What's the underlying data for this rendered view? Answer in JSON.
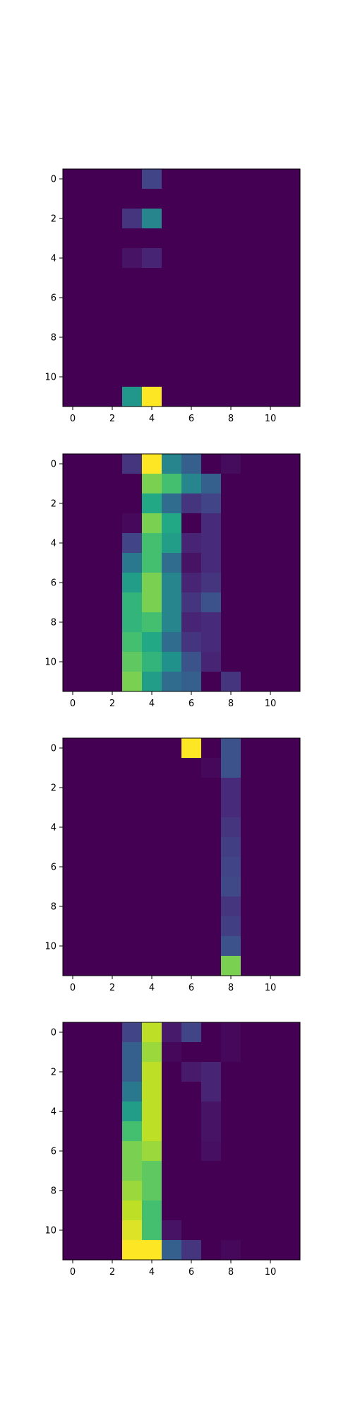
{
  "colormap": "viridis",
  "chart_data": [
    {
      "type": "heatmap",
      "x_ticks": [
        0,
        2,
        4,
        6,
        8,
        10
      ],
      "y_ticks": [
        0,
        2,
        4,
        6,
        8,
        10
      ],
      "xlim": [
        -0.5,
        11.5
      ],
      "ylim": [
        11.5,
        -0.5
      ],
      "vmin": 0,
      "vmax": 1,
      "values": [
        [
          0,
          0,
          0,
          0,
          0.2,
          0,
          0,
          0,
          0,
          0,
          0,
          0
        ],
        [
          0,
          0,
          0,
          0,
          0,
          0,
          0,
          0,
          0,
          0,
          0,
          0
        ],
        [
          0,
          0,
          0,
          0.15,
          0.45,
          0,
          0,
          0,
          0,
          0,
          0,
          0
        ],
        [
          0,
          0,
          0,
          0,
          0,
          0,
          0,
          0,
          0,
          0,
          0,
          0
        ],
        [
          0,
          0,
          0,
          0.05,
          0.1,
          0,
          0,
          0,
          0,
          0,
          0,
          0
        ],
        [
          0,
          0,
          0,
          0,
          0,
          0,
          0,
          0,
          0,
          0,
          0,
          0
        ],
        [
          0,
          0,
          0,
          0,
          0,
          0,
          0,
          0,
          0,
          0,
          0,
          0
        ],
        [
          0,
          0,
          0,
          0,
          0,
          0,
          0,
          0,
          0,
          0,
          0,
          0
        ],
        [
          0,
          0,
          0,
          0,
          0,
          0,
          0,
          0,
          0,
          0,
          0,
          0
        ],
        [
          0,
          0,
          0,
          0,
          0,
          0,
          0,
          0,
          0,
          0,
          0,
          0
        ],
        [
          0,
          0,
          0,
          0,
          0,
          0,
          0,
          0,
          0,
          0,
          0,
          0
        ],
        [
          0,
          0,
          0,
          0.52,
          1.0,
          0,
          0,
          0,
          0,
          0,
          0,
          0
        ]
      ]
    },
    {
      "type": "heatmap",
      "x_ticks": [
        0,
        2,
        4,
        6,
        8,
        10
      ],
      "y_ticks": [
        0,
        2,
        4,
        6,
        8,
        10
      ],
      "xlim": [
        -0.5,
        11.5
      ],
      "ylim": [
        11.5,
        -0.5
      ],
      "vmin": 0,
      "vmax": 1,
      "values": [
        [
          0,
          0,
          0,
          0.15,
          1.0,
          0.45,
          0.3,
          0,
          0.03,
          0,
          0,
          0
        ],
        [
          0,
          0,
          0,
          0,
          0.8,
          0.7,
          0.45,
          0.3,
          0,
          0,
          0,
          0
        ],
        [
          0,
          0,
          0,
          0,
          0.6,
          0.35,
          0.15,
          0.2,
          0,
          0,
          0,
          0
        ],
        [
          0,
          0,
          0,
          0.02,
          0.8,
          0.6,
          0,
          0.12,
          0,
          0,
          0,
          0
        ],
        [
          0,
          0,
          0,
          0.2,
          0.7,
          0.55,
          0.1,
          0.12,
          0,
          0,
          0,
          0
        ],
        [
          0,
          0,
          0,
          0.4,
          0.7,
          0.35,
          0.05,
          0.12,
          0,
          0,
          0,
          0
        ],
        [
          0,
          0,
          0,
          0.55,
          0.8,
          0.45,
          0.1,
          0.15,
          0,
          0,
          0,
          0
        ],
        [
          0,
          0,
          0,
          0.65,
          0.8,
          0.45,
          0.15,
          0.25,
          0,
          0,
          0,
          0
        ],
        [
          0,
          0,
          0,
          0.65,
          0.7,
          0.45,
          0.1,
          0.12,
          0,
          0,
          0,
          0
        ],
        [
          0,
          0,
          0,
          0.7,
          0.6,
          0.35,
          0.15,
          0.12,
          0,
          0,
          0,
          0
        ],
        [
          0,
          0,
          0,
          0.75,
          0.65,
          0.5,
          0.25,
          0.1,
          0,
          0,
          0,
          0
        ],
        [
          0,
          0,
          0,
          0.8,
          0.55,
          0.35,
          0.3,
          0,
          0.15,
          0,
          0,
          0
        ]
      ]
    },
    {
      "type": "heatmap",
      "x_ticks": [
        0,
        2,
        4,
        6,
        8,
        10
      ],
      "y_ticks": [
        0,
        2,
        4,
        6,
        8,
        10
      ],
      "xlim": [
        -0.5,
        11.5
      ],
      "ylim": [
        11.5,
        -0.5
      ],
      "vmin": 0,
      "vmax": 1,
      "values": [
        [
          0,
          0,
          0,
          0,
          0,
          0,
          1.0,
          0,
          0.25,
          0,
          0,
          0
        ],
        [
          0,
          0,
          0,
          0,
          0,
          0,
          0,
          0.02,
          0.25,
          0,
          0,
          0
        ],
        [
          0,
          0,
          0,
          0,
          0,
          0,
          0,
          0,
          0.12,
          0,
          0,
          0
        ],
        [
          0,
          0,
          0,
          0,
          0,
          0,
          0,
          0,
          0.12,
          0,
          0,
          0
        ],
        [
          0,
          0,
          0,
          0,
          0,
          0,
          0,
          0,
          0.15,
          0,
          0,
          0
        ],
        [
          0,
          0,
          0,
          0,
          0,
          0,
          0,
          0,
          0.18,
          0,
          0,
          0
        ],
        [
          0,
          0,
          0,
          0,
          0,
          0,
          0,
          0,
          0.2,
          0,
          0,
          0
        ],
        [
          0,
          0,
          0,
          0,
          0,
          0,
          0,
          0,
          0.22,
          0,
          0,
          0
        ],
        [
          0,
          0,
          0,
          0,
          0,
          0,
          0,
          0,
          0.15,
          0,
          0,
          0
        ],
        [
          0,
          0,
          0,
          0,
          0,
          0,
          0,
          0,
          0.18,
          0,
          0,
          0
        ],
        [
          0,
          0,
          0,
          0,
          0,
          0,
          0,
          0,
          0.25,
          0,
          0,
          0
        ],
        [
          0,
          0,
          0,
          0,
          0,
          0,
          0,
          0,
          0.8,
          0,
          0,
          0
        ]
      ]
    },
    {
      "type": "heatmap",
      "x_ticks": [
        0,
        2,
        4,
        6,
        8,
        10
      ],
      "y_ticks": [
        0,
        2,
        4,
        6,
        8,
        10
      ],
      "xlim": [
        -0.5,
        11.5
      ],
      "ylim": [
        11.5,
        -0.5
      ],
      "vmin": 0,
      "vmax": 1,
      "values": [
        [
          0,
          0,
          0,
          0.2,
          0.9,
          0.07,
          0.2,
          0,
          0.02,
          0,
          0,
          0
        ],
        [
          0,
          0,
          0,
          0.3,
          0.85,
          0.02,
          0,
          0,
          0.02,
          0,
          0,
          0
        ],
        [
          0,
          0,
          0,
          0.3,
          0.9,
          0,
          0.07,
          0.1,
          0,
          0,
          0,
          0
        ],
        [
          0,
          0,
          0,
          0.4,
          0.9,
          0,
          0,
          0.1,
          0,
          0,
          0,
          0
        ],
        [
          0,
          0,
          0,
          0.55,
          0.9,
          0,
          0,
          0.05,
          0,
          0,
          0,
          0
        ],
        [
          0,
          0,
          0,
          0.7,
          0.9,
          0,
          0,
          0.05,
          0,
          0,
          0,
          0
        ],
        [
          0,
          0,
          0,
          0.8,
          0.85,
          0,
          0,
          0.04,
          0,
          0,
          0,
          0
        ],
        [
          0,
          0,
          0,
          0.8,
          0.75,
          0,
          0,
          0,
          0,
          0,
          0,
          0
        ],
        [
          0,
          0,
          0,
          0.85,
          0.75,
          0,
          0,
          0,
          0,
          0,
          0,
          0
        ],
        [
          0,
          0,
          0,
          0.9,
          0.7,
          0,
          0,
          0,
          0,
          0,
          0,
          0
        ],
        [
          0,
          0,
          0,
          0.95,
          0.7,
          0.05,
          0,
          0,
          0,
          0,
          0,
          0
        ],
        [
          0,
          0,
          0,
          1.0,
          1.0,
          0.3,
          0.15,
          0,
          0.02,
          0,
          0,
          0
        ]
      ]
    }
  ]
}
